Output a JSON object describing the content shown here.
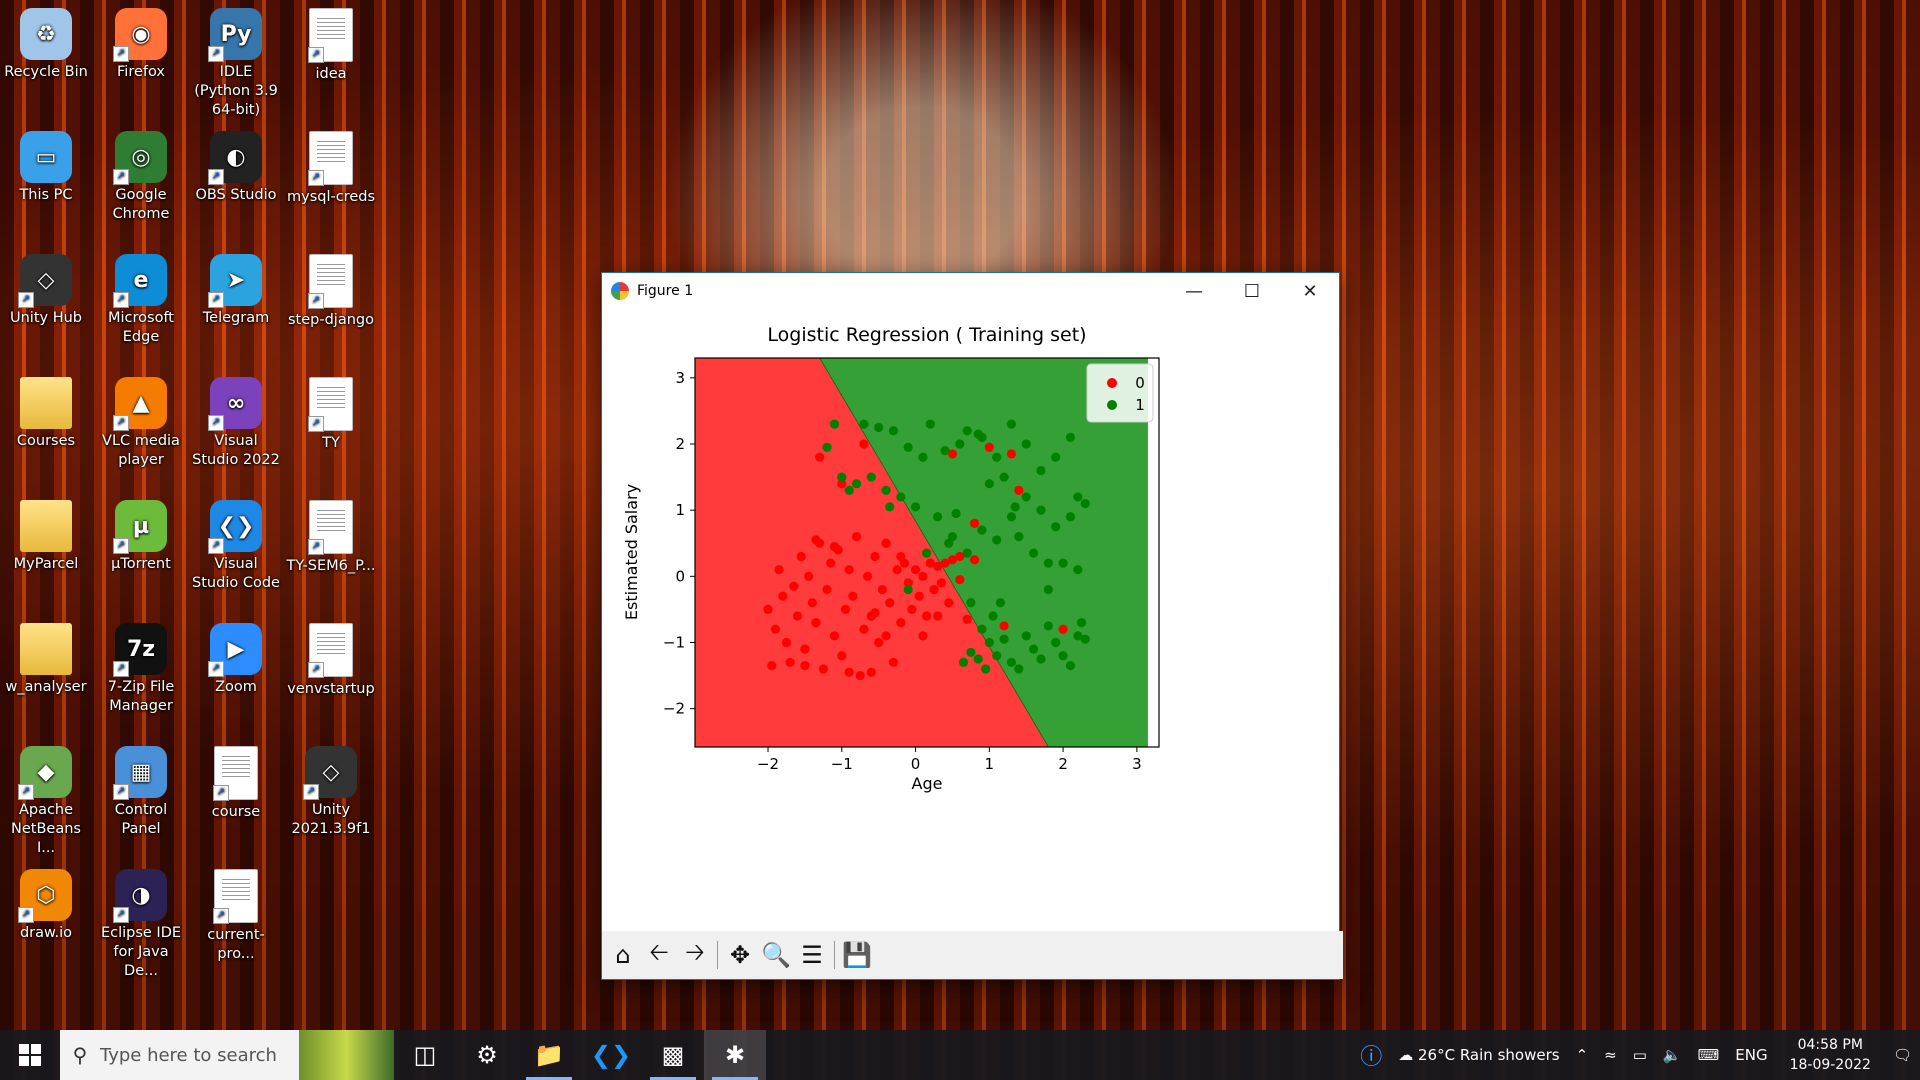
{
  "desktop": {
    "icons": [
      {
        "label": "Recycle Bin",
        "icon": "recycle-bin-icon"
      },
      {
        "label": "Firefox",
        "icon": "firefox-icon"
      },
      {
        "label": "IDLE (Python 3.9 64-bit)",
        "icon": "python-idle-icon"
      },
      {
        "label": "idea",
        "icon": "document-icon"
      },
      {
        "label": "This PC",
        "icon": "computer-icon"
      },
      {
        "label": "Google Chrome",
        "icon": "chrome-icon"
      },
      {
        "label": "OBS Studio",
        "icon": "obs-icon"
      },
      {
        "label": "mysql-creds",
        "icon": "document-icon"
      },
      {
        "label": "Unity Hub",
        "icon": "unity-icon"
      },
      {
        "label": "Microsoft Edge",
        "icon": "edge-icon"
      },
      {
        "label": "Telegram",
        "icon": "telegram-icon"
      },
      {
        "label": "step-django",
        "icon": "document-icon"
      },
      {
        "label": "Courses",
        "icon": "folder-icon"
      },
      {
        "label": "VLC media player",
        "icon": "vlc-icon"
      },
      {
        "label": "Visual Studio 2022",
        "icon": "visual-studio-icon"
      },
      {
        "label": "TY",
        "icon": "document-icon"
      },
      {
        "label": "MyParcel",
        "icon": "folder-icon"
      },
      {
        "label": "µTorrent",
        "icon": "utorrent-icon"
      },
      {
        "label": "Visual Studio Code",
        "icon": "vscode-icon"
      },
      {
        "label": "TY-SEM6_P...",
        "icon": "document-icon"
      },
      {
        "label": "w_analyser",
        "icon": "folder-icon"
      },
      {
        "label": "7-Zip File Manager",
        "icon": "7zip-icon"
      },
      {
        "label": "Zoom",
        "icon": "zoom-icon"
      },
      {
        "label": "venvstartup",
        "icon": "document-icon"
      },
      {
        "label": "Apache NetBeans I...",
        "icon": "netbeans-icon"
      },
      {
        "label": "Control Panel",
        "icon": "control-panel-icon"
      },
      {
        "label": "course",
        "icon": "document-icon"
      },
      {
        "label": "Unity 2021.3.9f1",
        "icon": "unity-icon"
      },
      {
        "label": "draw.io",
        "icon": "drawio-icon"
      },
      {
        "label": "Eclipse IDE for Java De...",
        "icon": "eclipse-icon"
      },
      {
        "label": "current-pro...",
        "icon": "document-icon"
      }
    ]
  },
  "window": {
    "title": "Figure 1",
    "minimize_icon": "minimize-icon",
    "maximize_icon": "maximize-icon",
    "close_icon": "close-icon",
    "toolbar": [
      "home-icon",
      "back-arrow-icon",
      "forward-arrow-icon",
      "pan-icon",
      "zoom-icon",
      "configure-subplots-icon",
      "save-icon"
    ]
  },
  "chart_data": {
    "type": "scatter",
    "title": "Logistic Regression ( Training set)",
    "xlabel": "Age",
    "ylabel": "Estimated Salary",
    "xlim": [
      -2.99,
      3.3
    ],
    "ylim": [
      -2.58,
      3.3
    ],
    "xticks": [
      "−2",
      "−1",
      "0",
      "1",
      "2",
      "3"
    ],
    "xtick_values": [
      -2,
      -1,
      0,
      1,
      2,
      3
    ],
    "yticks": [
      "−2",
      "−1",
      "0",
      "1",
      "2",
      "3"
    ],
    "ytick_values": [
      -2,
      -1,
      0,
      1,
      2,
      3
    ],
    "legend": {
      "placement": "top-right",
      "entries": [
        "0",
        "1"
      ]
    },
    "background_regions": {
      "class_0_color": "#ff3b3b",
      "class_1_color": "#35a035",
      "decision_boundary": [
        [
          -1.3,
          3.3
        ],
        [
          1.8,
          -2.58
        ]
      ]
    },
    "series": [
      {
        "name": "0",
        "color": "#ff0000",
        "points": [
          [
            -2.0,
            -0.5
          ],
          [
            -1.9,
            -0.8
          ],
          [
            -1.8,
            -0.3
          ],
          [
            -1.85,
            0.1
          ],
          [
            -1.75,
            -1.0
          ],
          [
            -1.7,
            -1.3
          ],
          [
            -1.6,
            -0.6
          ],
          [
            -1.55,
            0.3
          ],
          [
            -1.5,
            -1.1
          ],
          [
            -1.45,
            0.0
          ],
          [
            -1.4,
            -0.4
          ],
          [
            -1.35,
            -0.7
          ],
          [
            -1.3,
            0.5
          ],
          [
            -1.25,
            -1.4
          ],
          [
            -1.2,
            -0.2
          ],
          [
            -1.15,
            0.2
          ],
          [
            -1.1,
            -0.9
          ],
          [
            -1.05,
            0.4
          ],
          [
            -1.0,
            -1.2
          ],
          [
            -0.95,
            -0.5
          ],
          [
            -0.9,
            0.1
          ],
          [
            -0.85,
            -0.3
          ],
          [
            -0.8,
            0.6
          ],
          [
            -0.75,
            -1.5
          ],
          [
            -0.7,
            -0.8
          ],
          [
            -0.65,
            0.0
          ],
          [
            -0.6,
            -0.6
          ],
          [
            -0.55,
            0.3
          ],
          [
            -0.5,
            -1.0
          ],
          [
            -0.45,
            -0.2
          ],
          [
            -0.4,
            0.5
          ],
          [
            -0.35,
            -0.4
          ],
          [
            -0.3,
            -1.3
          ],
          [
            -0.25,
            0.1
          ],
          [
            -0.2,
            -0.7
          ],
          [
            -0.15,
            0.2
          ],
          [
            -0.1,
            -0.1
          ],
          [
            -0.05,
            -0.5
          ],
          [
            0.0,
            0.1
          ],
          [
            0.05,
            -0.3
          ],
          [
            0.1,
            0.0
          ],
          [
            0.15,
            -0.6
          ],
          [
            0.2,
            0.2
          ],
          [
            0.25,
            -0.2
          ],
          [
            0.3,
            0.15
          ],
          [
            0.35,
            -0.1
          ],
          [
            0.4,
            0.2
          ],
          [
            0.45,
            -0.4
          ],
          [
            0.5,
            0.25
          ],
          [
            0.6,
            -0.05
          ],
          [
            -1.95,
            -1.35
          ],
          [
            -1.65,
            -0.15
          ],
          [
            -1.35,
            0.55
          ],
          [
            -1.1,
            0.45
          ],
          [
            -0.9,
            -1.45
          ],
          [
            -0.6,
            -1.45
          ],
          [
            -0.4,
            -0.9
          ],
          [
            -0.2,
            0.3
          ],
          [
            0.1,
            -0.9
          ],
          [
            0.3,
            -0.6
          ],
          [
            -1.0,
            1.4
          ],
          [
            -1.3,
            1.8
          ],
          [
            -0.7,
            2.0
          ],
          [
            0.5,
            1.85
          ],
          [
            1.0,
            1.95
          ],
          [
            1.3,
            1.85
          ],
          [
            1.4,
            1.3
          ],
          [
            0.8,
            0.8
          ],
          [
            0.7,
            -0.65
          ],
          [
            1.2,
            -0.75
          ],
          [
            2.0,
            -0.8
          ],
          [
            0.8,
            0.25
          ],
          [
            0.6,
            0.3
          ],
          [
            -0.55,
            -0.55
          ],
          [
            -1.5,
            -1.35
          ]
        ]
      },
      {
        "name": "1",
        "color": "#008000",
        "points": [
          [
            -1.1,
            2.3
          ],
          [
            -1.2,
            1.95
          ],
          [
            -1.0,
            1.5
          ],
          [
            -0.7,
            2.3
          ],
          [
            -0.5,
            2.25
          ],
          [
            -0.3,
            2.2
          ],
          [
            -0.1,
            1.95
          ],
          [
            0.1,
            1.8
          ],
          [
            0.2,
            2.3
          ],
          [
            0.4,
            1.9
          ],
          [
            0.6,
            2.0
          ],
          [
            0.7,
            2.2
          ],
          [
            0.9,
            2.1
          ],
          [
            1.1,
            1.8
          ],
          [
            1.3,
            2.3
          ],
          [
            1.5,
            2.0
          ],
          [
            1.7,
            1.6
          ],
          [
            1.9,
            1.8
          ],
          [
            2.1,
            2.1
          ],
          [
            2.3,
            1.1
          ],
          [
            -0.8,
            1.4
          ],
          [
            -0.6,
            1.5
          ],
          [
            -0.4,
            1.3
          ],
          [
            -0.2,
            1.2
          ],
          [
            0.0,
            1.05
          ],
          [
            0.3,
            0.9
          ],
          [
            0.5,
            0.6
          ],
          [
            0.7,
            0.35
          ],
          [
            0.9,
            0.7
          ],
          [
            1.1,
            0.55
          ],
          [
            1.3,
            0.9
          ],
          [
            1.5,
            1.2
          ],
          [
            1.7,
            1.0
          ],
          [
            1.9,
            0.75
          ],
          [
            2.1,
            0.9
          ],
          [
            2.2,
            1.2
          ],
          [
            1.0,
            1.4
          ],
          [
            1.2,
            1.5
          ],
          [
            1.4,
            0.6
          ],
          [
            1.6,
            0.35
          ],
          [
            1.8,
            0.2
          ],
          [
            2.0,
            0.2
          ],
          [
            2.2,
            0.1
          ],
          [
            0.75,
            -0.4
          ],
          [
            0.9,
            -0.8
          ],
          [
            1.0,
            -1.0
          ],
          [
            1.1,
            -1.2
          ],
          [
            1.2,
            -0.95
          ],
          [
            1.3,
            -1.3
          ],
          [
            1.4,
            -1.4
          ],
          [
            1.5,
            -0.9
          ],
          [
            1.6,
            -1.1
          ],
          [
            1.7,
            -1.25
          ],
          [
            1.8,
            -0.75
          ],
          [
            1.9,
            -1.0
          ],
          [
            2.0,
            -1.2
          ],
          [
            2.1,
            -1.35
          ],
          [
            2.2,
            -0.9
          ],
          [
            2.25,
            -0.7
          ],
          [
            0.85,
            -1.25
          ],
          [
            0.95,
            -1.4
          ],
          [
            0.75,
            -1.15
          ],
          [
            0.65,
            -1.3
          ],
          [
            1.05,
            -0.6
          ],
          [
            1.15,
            -0.4
          ],
          [
            0.55,
            0.95
          ],
          [
            -0.9,
            1.3
          ],
          [
            -0.35,
            1.05
          ],
          [
            0.15,
            0.35
          ],
          [
            0.45,
            0.5
          ],
          [
            -0.1,
            -0.2
          ],
          [
            1.8,
            -0.2
          ],
          [
            2.3,
            -0.95
          ],
          [
            0.85,
            2.15
          ],
          [
            1.35,
            1.05
          ]
        ]
      }
    ]
  },
  "taskbar": {
    "search_placeholder": "Type here to search",
    "apps": [
      {
        "icon": "task-view-icon",
        "active": false
      },
      {
        "icon": "settings-gear-icon",
        "active": false
      },
      {
        "icon": "file-explorer-icon",
        "active": false
      },
      {
        "icon": "vscode-icon",
        "active": false
      },
      {
        "icon": "terminal-icon",
        "active": false
      },
      {
        "icon": "matplotlib-figure-icon",
        "active": true
      }
    ],
    "weather": "26°C  Rain showers",
    "language": "ENG",
    "time": "04:58 PM",
    "date": "18-09-2022"
  }
}
